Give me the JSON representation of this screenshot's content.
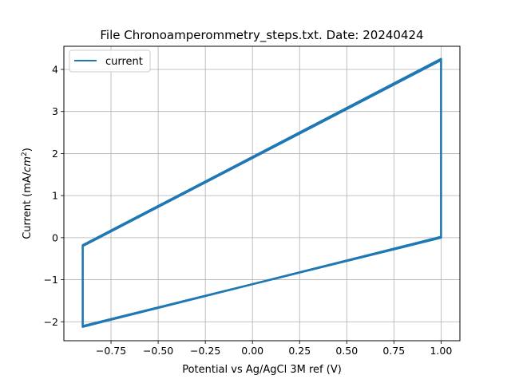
{
  "chart_data": {
    "type": "line",
    "title": "File Chronoamperommetry_steps.txt. Date: 20240424",
    "xlabel": "Potential vs Ag/AgCl 3M ref (V)",
    "ylabel_main": "Current (mA/",
    "ylabel_var": "cm",
    "ylabel_sup": "2",
    "ylabel_end": ")",
    "xlim": [
      -1.0,
      1.1
    ],
    "ylim": [
      -2.45,
      4.55
    ],
    "xticks": [
      -0.75,
      -0.5,
      -0.25,
      0.0,
      0.25,
      0.5,
      0.75,
      1.0
    ],
    "xtick_labels": [
      "−0.75",
      "−0.50",
      "−0.25",
      "0.00",
      "0.25",
      "0.50",
      "0.75",
      "1.00"
    ],
    "yticks": [
      -2,
      -1,
      0,
      1,
      2,
      3,
      4
    ],
    "ytick_labels": [
      "−2",
      "−1",
      "0",
      "1",
      "2",
      "3",
      "4"
    ],
    "grid": true,
    "legend_position": "upper-left",
    "series": [
      {
        "name": "current",
        "color": "#1f77b4",
        "x": [
          -0.9,
          -0.9,
          1.0,
          1.0,
          -0.9,
          -0.9,
          1.0,
          1.0,
          -0.9
        ],
        "y": [
          -0.18,
          -2.1,
          0.0,
          4.25,
          -0.18,
          -2.12,
          0.02,
          4.22,
          -0.2
        ]
      }
    ]
  }
}
